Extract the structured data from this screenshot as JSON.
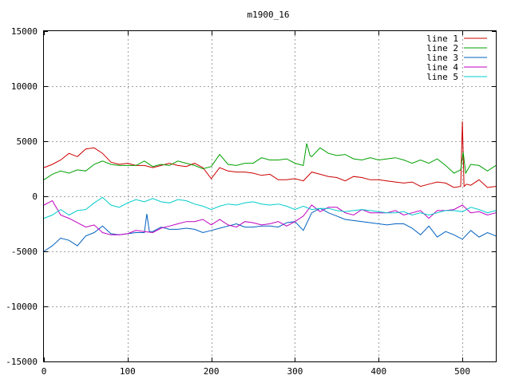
{
  "chart_data": {
    "type": "line",
    "title": "m1900_16",
    "xlabel": "",
    "ylabel": "",
    "xlim": [
      0,
      540
    ],
    "ylim": [
      -15000,
      15000
    ],
    "x_ticks": [
      0,
      100,
      200,
      300,
      400,
      500
    ],
    "y_ticks": [
      -15000,
      -10000,
      -5000,
      0,
      5000,
      10000,
      15000
    ],
    "grid": true,
    "legend_position": "top-right",
    "series": [
      {
        "name": "line 1",
        "color": "#cc0000",
        "x": [
          0,
          10,
          20,
          30,
          40,
          50,
          60,
          70,
          80,
          90,
          100,
          110,
          120,
          130,
          140,
          150,
          160,
          170,
          180,
          190,
          200,
          210,
          220,
          230,
          240,
          250,
          260,
          270,
          280,
          290,
          300,
          310,
          320,
          330,
          340,
          350,
          360,
          370,
          380,
          390,
          400,
          410,
          420,
          430,
          440,
          450,
          460,
          470,
          480,
          490,
          498,
          500,
          502,
          505,
          510,
          520,
          530,
          540
        ],
        "y": [
          2600,
          2900,
          3300,
          3900,
          3600,
          4300,
          4400,
          3900,
          3100,
          2900,
          3000,
          2800,
          2800,
          2600,
          2800,
          3000,
          2800,
          2700,
          3000,
          2600,
          1600,
          2600,
          2300,
          2200,
          2200,
          2100,
          1900,
          2000,
          1500,
          1500,
          1600,
          1400,
          2200,
          2000,
          1800,
          1700,
          1400,
          1800,
          1700,
          1500,
          1500,
          1400,
          1300,
          1200,
          1300,
          900,
          1100,
          1300,
          1200,
          800,
          900,
          6800,
          900,
          1100,
          1000,
          1500,
          800,
          900
        ]
      },
      {
        "name": "line 2",
        "color": "#00a000",
        "x": [
          0,
          10,
          20,
          30,
          40,
          50,
          60,
          70,
          80,
          90,
          100,
          110,
          120,
          130,
          140,
          150,
          160,
          170,
          180,
          190,
          200,
          210,
          220,
          230,
          240,
          250,
          260,
          270,
          280,
          290,
          300,
          310,
          314,
          318,
          320,
          330,
          340,
          350,
          360,
          370,
          380,
          390,
          400,
          410,
          420,
          430,
          440,
          450,
          460,
          470,
          480,
          490,
          498,
          501,
          504,
          510,
          520,
          530,
          540
        ],
        "y": [
          1500,
          2000,
          2300,
          2100,
          2400,
          2300,
          2900,
          3200,
          2900,
          2800,
          2800,
          2800,
          3200,
          2700,
          2900,
          2800,
          3200,
          3000,
          2800,
          2500,
          2700,
          3800,
          2900,
          2800,
          3000,
          3000,
          3500,
          3300,
          3300,
          3400,
          3000,
          2800,
          4800,
          3700,
          3600,
          4400,
          3900,
          3700,
          3800,
          3400,
          3300,
          3500,
          3300,
          3400,
          3500,
          3300,
          3000,
          3300,
          3000,
          3400,
          2800,
          2100,
          2400,
          4000,
          2100,
          2900,
          2800,
          2300,
          2800
        ]
      },
      {
        "name": "line 3",
        "color": "#0060c0",
        "x": [
          0,
          10,
          20,
          30,
          40,
          50,
          60,
          70,
          80,
          90,
          100,
          110,
          120,
          123,
          126,
          130,
          140,
          150,
          160,
          170,
          180,
          190,
          200,
          210,
          220,
          230,
          240,
          250,
          260,
          270,
          280,
          290,
          300,
          310,
          320,
          330,
          340,
          350,
          360,
          370,
          380,
          390,
          400,
          410,
          420,
          430,
          440,
          450,
          460,
          470,
          480,
          490,
          500,
          510,
          520,
          530,
          540
        ],
        "y": [
          -5000,
          -4500,
          -3800,
          -4000,
          -4500,
          -3600,
          -3300,
          -2700,
          -3400,
          -3500,
          -3400,
          -3300,
          -3300,
          -1600,
          -3200,
          -3200,
          -2800,
          -3000,
          -3000,
          -2900,
          -3000,
          -3300,
          -3100,
          -2900,
          -2700,
          -2500,
          -2800,
          -2800,
          -2700,
          -2700,
          -2800,
          -2400,
          -2300,
          -3100,
          -1500,
          -1100,
          -1500,
          -1800,
          -2100,
          -2200,
          -2300,
          -2400,
          -2500,
          -2600,
          -2500,
          -2500,
          -2900,
          -3500,
          -2700,
          -3700,
          -3200,
          -3500,
          -3900,
          -3100,
          -3700,
          -3300,
          -3600
        ]
      },
      {
        "name": "line 4",
        "color": "#c000c0",
        "x": [
          0,
          10,
          20,
          30,
          40,
          50,
          60,
          70,
          80,
          90,
          100,
          110,
          120,
          130,
          140,
          150,
          160,
          170,
          180,
          190,
          200,
          210,
          220,
          230,
          240,
          250,
          260,
          270,
          280,
          290,
          300,
          310,
          320,
          330,
          340,
          350,
          360,
          370,
          380,
          390,
          400,
          410,
          420,
          430,
          440,
          450,
          460,
          470,
          480,
          490,
          500,
          510,
          520,
          530,
          540
        ],
        "y": [
          -800,
          -400,
          -1700,
          -2000,
          -2400,
          -2800,
          -2600,
          -3300,
          -3500,
          -3500,
          -3400,
          -3100,
          -3200,
          -3300,
          -2900,
          -2700,
          -2500,
          -2300,
          -2300,
          -2100,
          -2600,
          -2100,
          -2600,
          -2800,
          -2300,
          -2400,
          -2600,
          -2500,
          -2300,
          -2700,
          -2300,
          -1800,
          -800,
          -1400,
          -1000,
          -1000,
          -1500,
          -1700,
          -1200,
          -1500,
          -1500,
          -1500,
          -1300,
          -1700,
          -1500,
          -1300,
          -2000,
          -1300,
          -1300,
          -1200,
          -800,
          -1500,
          -1400,
          -1700,
          -1500
        ]
      },
      {
        "name": "line 5",
        "color": "#00cccc",
        "x": [
          0,
          10,
          20,
          30,
          40,
          50,
          60,
          70,
          80,
          90,
          100,
          110,
          120,
          130,
          140,
          150,
          160,
          170,
          180,
          190,
          200,
          210,
          220,
          230,
          240,
          250,
          260,
          270,
          280,
          290,
          300,
          310,
          320,
          330,
          340,
          350,
          360,
          370,
          380,
          390,
          400,
          410,
          420,
          430,
          440,
          450,
          460,
          470,
          480,
          490,
          500,
          510,
          520,
          530,
          540
        ],
        "y": [
          -2000,
          -1700,
          -1200,
          -1700,
          -1300,
          -1200,
          -600,
          -100,
          -800,
          -1000,
          -600,
          -300,
          -500,
          -200,
          -500,
          -600,
          -300,
          -400,
          -700,
          -900,
          -1200,
          -900,
          -700,
          -800,
          -600,
          -500,
          -700,
          -800,
          -700,
          -900,
          -1200,
          -900,
          -1200,
          -1100,
          -1100,
          -1300,
          -1400,
          -1300,
          -1200,
          -1300,
          -1400,
          -1500,
          -1500,
          -1400,
          -1700,
          -1500,
          -1700,
          -1500,
          -1300,
          -1300,
          -1400,
          -1000,
          -1200,
          -1500,
          -1300
        ]
      }
    ]
  }
}
